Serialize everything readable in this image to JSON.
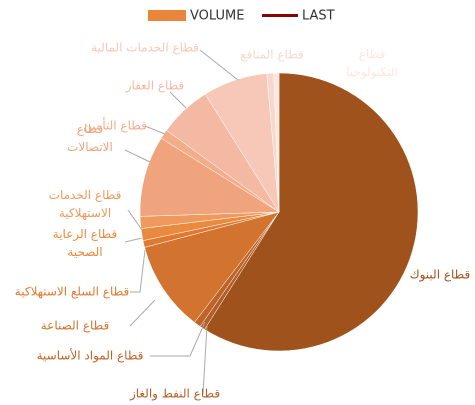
{
  "chart_data": {
    "type": "pie",
    "categories": [
      "قطاع البنوك",
      "قطاع النفط والغاز",
      "قطاع المواد الأساسية",
      "قطاع الصناعة",
      "قطاع السلع الاستهلاكية",
      "قطاع الرعاية الصحية",
      "قطاع الخدمات الاستهلاكية",
      "قطاع الاتصالات",
      "قطاع التأمين",
      "قطاع العقار",
      "قطاع الخدمات المالية",
      "قطاع المنافع",
      "قطاع التكنولوجيا"
    ],
    "series": [
      {
        "name": "VOLUME",
        "color": "#e8873c",
        "colors": [
          "#a0521c",
          "#b35e26",
          "#bf6428",
          "#d2742f",
          "#e07a30",
          "#ea8a3e",
          "#ef9a5c",
          "#f0a47e",
          "#f2ad8a",
          "#f4b9a3",
          "#f7c8b8",
          "#f9d8cc",
          "#fce6df"
        ],
        "values": [
          59,
          0.6,
          0.8,
          10.5,
          0.8,
          1.4,
          1.4,
          9.4,
          1.1,
          6.1,
          7.5,
          0.8,
          0.6
        ]
      },
      {
        "name": "LAST",
        "color": "#8b0000"
      }
    ]
  }
}
